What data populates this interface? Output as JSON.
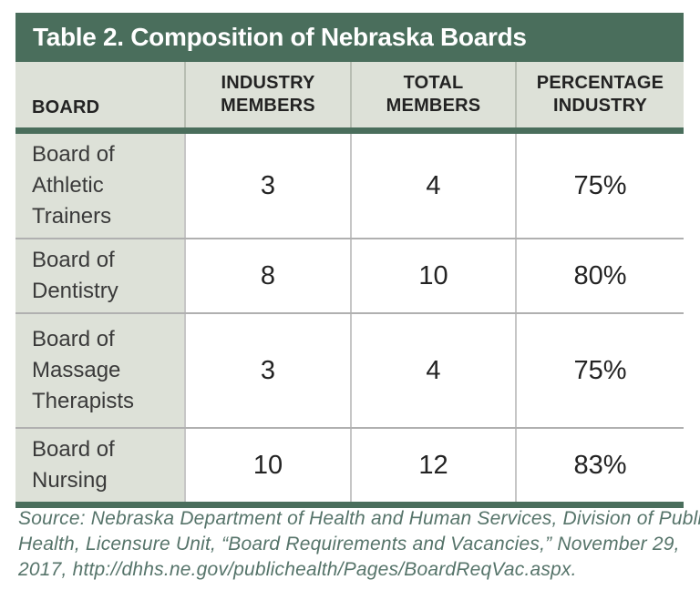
{
  "title": "Table 2. Composition of Nebraska Boards",
  "table": {
    "columns": {
      "board": "BOARD",
      "industry_members": "INDUSTRY\nMEMBERS",
      "total_members": "TOTAL\nMEMBERS",
      "percentage_industry": "PERCENTAGE\nINDUSTRY"
    },
    "rows": [
      {
        "board": "Board of\nAthletic\nTrainers",
        "industry_members": "3",
        "total_members": "4",
        "percentage_industry": "75%"
      },
      {
        "board": "Board of\nDentistry",
        "industry_members": "8",
        "total_members": "10",
        "percentage_industry": "80%"
      },
      {
        "board": "Board of\nMassage\nTherapists",
        "industry_members": "3",
        "total_members": "4",
        "percentage_industry": "75%"
      },
      {
        "board": "Board of\nNursing",
        "industry_members": "10",
        "total_members": "12",
        "percentage_industry": "83%"
      }
    ]
  },
  "source": {
    "lines": [
      "Source: Nebraska Department of Health and Human Services, Division of Public",
      "Health, Licensure Unit, “Board Requirements and Vacancies,” November 29,",
      "2017, http://dhhs.ne.gov/publichealth/Pages/BoardReqVac.aspx."
    ]
  },
  "colors": {
    "accent_green": "#4A6E5C",
    "header_bg": "#DDE1D8",
    "source_text": "#56746A",
    "body_text": "#232323",
    "gridline": "#b0b0b0"
  }
}
